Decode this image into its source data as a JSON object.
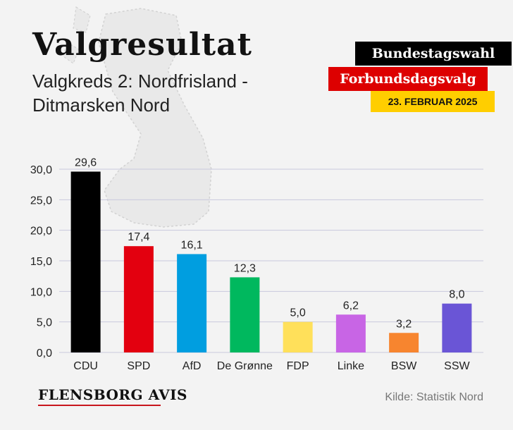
{
  "title": "Valgresultat",
  "subtitle": "Valgkreds 2: Nordfrisland - Ditmarsken Nord",
  "badges": {
    "election_de": "Bundestagswahl",
    "election_dk": "Forbundsdagsvalg",
    "date": "23. FEBRUAR 2025"
  },
  "logo": "FLENSBORG AVIS",
  "source": "Kilde: Statistik Nord",
  "colors": {
    "background": "#f3f3f3",
    "grid": "#c9c9dd",
    "badge_black": "#000000",
    "badge_red": "#dd0000",
    "badge_gold": "#ffce00",
    "logo_red": "#c8161d"
  },
  "chart_data": {
    "type": "bar",
    "categories": [
      "CDU",
      "SPD",
      "AfD",
      "De Grønne",
      "FDP",
      "Linke",
      "BSW",
      "SSW"
    ],
    "values": [
      29.6,
      17.4,
      16.1,
      12.3,
      5.0,
      6.2,
      3.2,
      8.0
    ],
    "value_labels": [
      "29,6",
      "17,4",
      "16,1",
      "12,3",
      "5,0",
      "6,2",
      "3,2",
      "8,0"
    ],
    "colors": [
      "#000000",
      "#e3000f",
      "#009ee0",
      "#00b85e",
      "#ffe05a",
      "#c865e5",
      "#f7852f",
      "#6a55d6"
    ],
    "yticks": [
      0,
      5,
      10,
      15,
      20,
      25,
      30
    ],
    "ytick_labels": [
      "0,0",
      "5,0",
      "10,0",
      "15,0",
      "20,0",
      "25,0",
      "30,0"
    ],
    "ylim": [
      0,
      30
    ],
    "grid": true,
    "legend": "none",
    "title": "",
    "xlabel": "",
    "ylabel": ""
  }
}
